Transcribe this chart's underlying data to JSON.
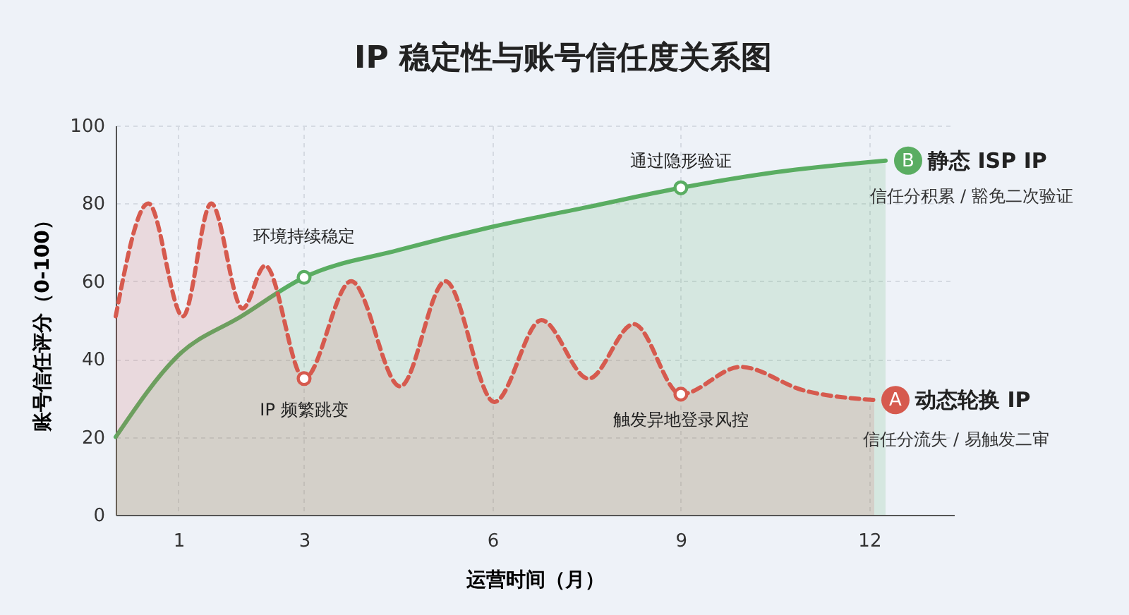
{
  "chart_data": {
    "type": "area",
    "title": "IP 稳定性与账号信任度关系图",
    "xlabel": "运营时间（月）",
    "ylabel": "账号信任评分（0-100）",
    "xlim": [
      0,
      13.35
    ],
    "ylim": [
      0,
      100
    ],
    "xticks": [
      1,
      3,
      6,
      9,
      12
    ],
    "yticks": [
      0,
      20,
      40,
      60,
      80,
      100
    ],
    "grid": true,
    "legend": "right",
    "series": [
      {
        "name": "静态 ISP IP",
        "color": "#5aad62",
        "line_style": "solid",
        "x": [
          0,
          1,
          2,
          3,
          4.5,
          6,
          7.5,
          9,
          10.5,
          12.26
        ],
        "values": [
          20,
          41,
          51,
          61,
          68,
          74,
          79,
          84,
          88,
          91
        ]
      },
      {
        "name": "动态轮换 IP",
        "color": "#d65a4e",
        "line_style": "dashed",
        "x": [
          0,
          0.52,
          1.07,
          1.52,
          2.02,
          2.38,
          3,
          3.75,
          4.53,
          5.25,
          6.03,
          6.78,
          7.53,
          8.25,
          9,
          9.95,
          10.95,
          12.08
        ],
        "values": [
          51,
          80,
          51,
          80,
          53,
          64,
          35,
          60,
          33,
          60,
          29,
          50,
          35,
          49,
          31,
          38,
          32,
          29.5
        ]
      }
    ],
    "annotations": [
      {
        "text": "环境持续稳定",
        "x": 3,
        "y": 61
      },
      {
        "text": "IP 频繁跳变",
        "x": 3,
        "y": 35
      },
      {
        "text": "通过隐形验证",
        "x": 9,
        "y": 84
      },
      {
        "text": "触发异地登录风控",
        "x": 9,
        "y": 31
      },
      {
        "text": "B",
        "x": 12.26,
        "y": 91
      },
      {
        "text": "信任分积累 / 豁免二次验证",
        "x": 12.26,
        "y": 91
      },
      {
        "text": "A",
        "x": 12.08,
        "y": 29.5
      },
      {
        "text": "信任分流失 / 易触发二审",
        "x": 12.08,
        "y": 29.5
      }
    ]
  }
}
